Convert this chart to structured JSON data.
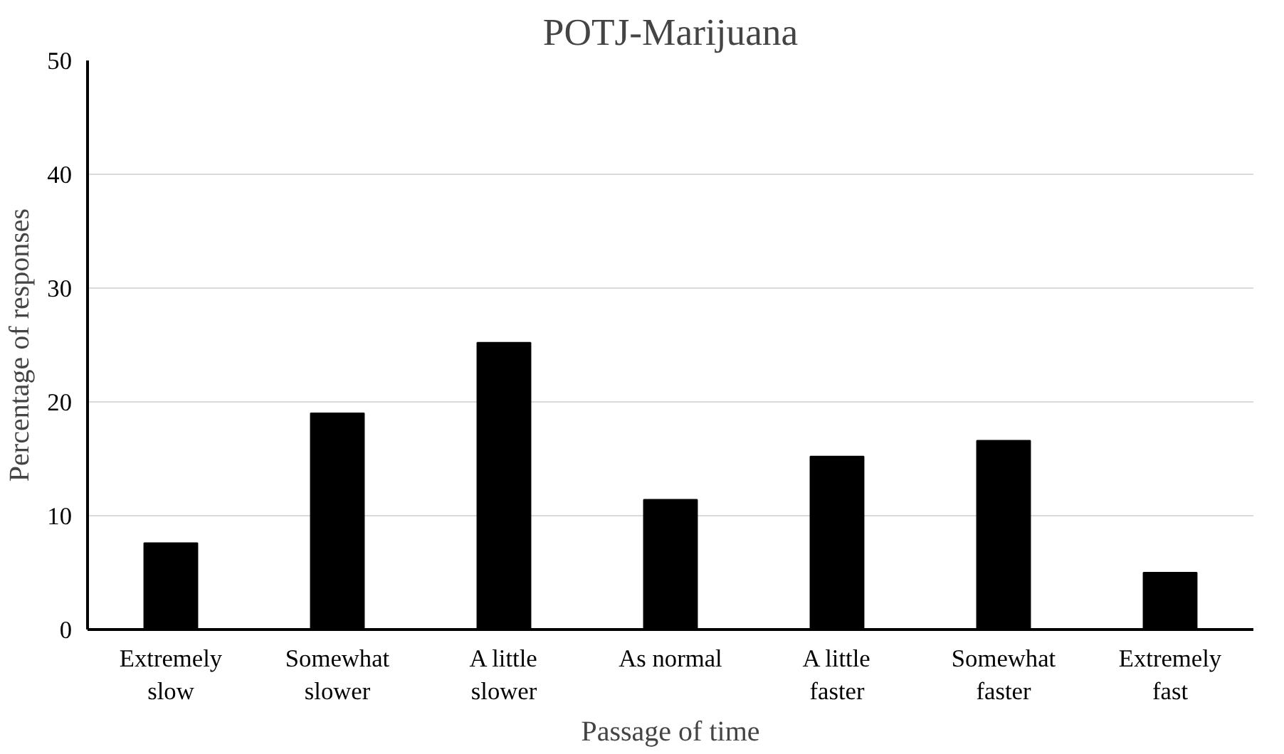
{
  "chart_data": {
    "type": "bar",
    "title": "POTJ-Marijuana",
    "xlabel": "Passage of time",
    "ylabel": "Percentage of responses",
    "categories": [
      "Extremely\nslow",
      "Somewhat\nslower",
      "A little\nslower",
      "As normal",
      "A little\nfaster",
      "Somewhat\nfaster",
      "Extremely\nfast"
    ],
    "values": [
      7.6,
      19.0,
      25.2,
      11.4,
      15.2,
      16.6,
      5.0
    ],
    "color": "#000000",
    "ylim": [
      0,
      50
    ],
    "yticks": [
      0,
      10,
      20,
      30,
      40,
      50
    ],
    "grid": "y"
  }
}
